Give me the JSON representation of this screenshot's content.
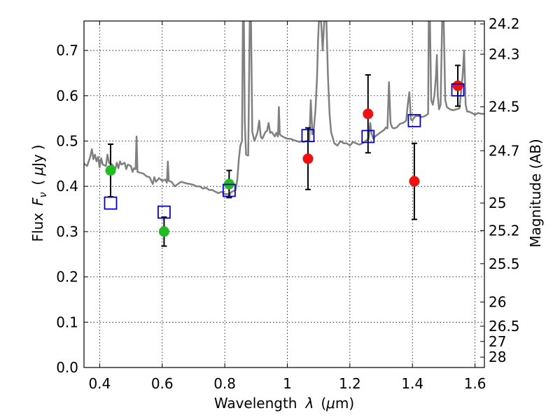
{
  "chart_data": {
    "type": "scatter",
    "xlabel_parts": [
      "Wavelength",
      "λ",
      "(",
      "μ",
      "m)"
    ],
    "ylabel_parts": [
      "Flux",
      "F",
      "ν",
      "(",
      "μ",
      "Jy",
      ")"
    ],
    "y2label": "Magnitude (AB)",
    "xlim": [
      0.35,
      1.63
    ],
    "ylim": [
      0.0,
      0.765
    ],
    "x_ticks": [
      {
        "value": 0.4,
        "label": "0.4"
      },
      {
        "value": 0.6,
        "label": "0.6"
      },
      {
        "value": 0.8,
        "label": "0.8"
      },
      {
        "value": 1.0,
        "label": "1"
      },
      {
        "value": 1.2,
        "label": "1.2"
      },
      {
        "value": 1.4,
        "label": "1.4"
      },
      {
        "value": 1.6,
        "label": "1.6"
      }
    ],
    "y_ticks": [
      {
        "value": 0.0,
        "label": "0.0"
      },
      {
        "value": 0.1,
        "label": "0.1"
      },
      {
        "value": 0.2,
        "label": "0.2"
      },
      {
        "value": 0.3,
        "label": "0.3"
      },
      {
        "value": 0.4,
        "label": "0.4"
      },
      {
        "value": 0.5,
        "label": "0.5"
      },
      {
        "value": 0.6,
        "label": "0.6"
      },
      {
        "value": 0.7,
        "label": "0.7"
      }
    ],
    "y2_ticks": [
      {
        "mag": 24.2,
        "label": "24.2"
      },
      {
        "mag": 24.3,
        "label": "24.3"
      },
      {
        "mag": 24.5,
        "label": "24.5"
      },
      {
        "mag": 24.7,
        "label": "24.7"
      },
      {
        "mag": 25.0,
        "label": "25"
      },
      {
        "mag": 25.2,
        "label": "25.2"
      },
      {
        "mag": 25.5,
        "label": "25.5"
      },
      {
        "mag": 26.0,
        "label": "26"
      },
      {
        "mag": 26.5,
        "label": "26.5"
      },
      {
        "mag": 27.0,
        "label": "27"
      },
      {
        "mag": 28.0,
        "label": "28"
      }
    ],
    "grid": true,
    "series": [
      {
        "marker": "circle",
        "color": "#22bb22",
        "points": [
          {
            "x": 0.435,
            "y": 0.435,
            "err": 0.058
          },
          {
            "x": 0.606,
            "y": 0.3,
            "err": 0.032
          },
          {
            "x": 0.814,
            "y": 0.405,
            "err": 0.03
          }
        ]
      },
      {
        "marker": "circle",
        "color": "#ee1111",
        "points": [
          {
            "x": 1.066,
            "y": 0.461,
            "err": 0.068
          },
          {
            "x": 1.258,
            "y": 0.56,
            "err": 0.086
          },
          {
            "x": 1.406,
            "y": 0.411,
            "err": 0.084
          },
          {
            "x": 1.545,
            "y": 0.622,
            "err": 0.045
          }
        ]
      },
      {
        "marker": "square",
        "color": "#0000cc",
        "points": [
          {
            "x": 0.435,
            "y": 0.363
          },
          {
            "x": 0.606,
            "y": 0.343
          },
          {
            "x": 0.814,
            "y": 0.391
          },
          {
            "x": 1.066,
            "y": 0.512
          },
          {
            "x": 1.258,
            "y": 0.51
          },
          {
            "x": 1.406,
            "y": 0.545
          },
          {
            "x": 1.545,
            "y": 0.613
          }
        ]
      }
    ],
    "model_spectrum": {
      "color": "#808080",
      "points": [
        [
          0.35,
          0.45
        ],
        [
          0.36,
          0.445
        ],
        [
          0.37,
          0.465
        ],
        [
          0.375,
          0.482
        ],
        [
          0.38,
          0.46
        ],
        [
          0.385,
          0.47
        ],
        [
          0.39,
          0.455
        ],
        [
          0.395,
          0.465
        ],
        [
          0.4,
          0.442
        ],
        [
          0.405,
          0.462
        ],
        [
          0.41,
          0.448
        ],
        [
          0.42,
          0.445
        ],
        [
          0.425,
          0.47
        ],
        [
          0.43,
          0.452
        ],
        [
          0.44,
          0.448
        ],
        [
          0.45,
          0.438
        ],
        [
          0.455,
          0.452
        ],
        [
          0.46,
          0.44
        ],
        [
          0.465,
          0.455
        ],
        [
          0.47,
          0.448
        ],
        [
          0.48,
          0.452
        ],
        [
          0.485,
          0.438
        ],
        [
          0.49,
          0.448
        ],
        [
          0.5,
          0.445
        ],
        [
          0.505,
          0.432
        ],
        [
          0.51,
          0.44
        ],
        [
          0.515,
          0.438
        ],
        [
          0.518,
          0.51
        ],
        [
          0.521,
          0.432
        ],
        [
          0.53,
          0.43
        ],
        [
          0.54,
          0.428
        ],
        [
          0.55,
          0.422
        ],
        [
          0.56,
          0.42
        ],
        [
          0.57,
          0.405
        ],
        [
          0.575,
          0.42
        ],
        [
          0.58,
          0.41
        ],
        [
          0.59,
          0.418
        ],
        [
          0.6,
          0.412
        ],
        [
          0.61,
          0.415
        ],
        [
          0.615,
          0.408
        ],
        [
          0.618,
          0.455
        ],
        [
          0.621,
          0.412
        ],
        [
          0.63,
          0.41
        ],
        [
          0.64,
          0.4
        ],
        [
          0.65,
          0.405
        ],
        [
          0.66,
          0.41
        ],
        [
          0.67,
          0.408
        ],
        [
          0.68,
          0.406
        ],
        [
          0.69,
          0.405
        ],
        [
          0.7,
          0.403
        ],
        [
          0.71,
          0.4
        ],
        [
          0.72,
          0.4
        ],
        [
          0.73,
          0.395
        ],
        [
          0.74,
          0.397
        ],
        [
          0.75,
          0.392
        ],
        [
          0.76,
          0.392
        ],
        [
          0.77,
          0.388
        ],
        [
          0.78,
          0.385
        ],
        [
          0.79,
          0.388
        ],
        [
          0.8,
          0.383
        ],
        [
          0.81,
          0.383
        ],
        [
          0.815,
          0.38
        ],
        [
          0.82,
          0.387
        ],
        [
          0.83,
          0.39
        ],
        [
          0.835,
          0.392
        ],
        [
          0.84,
          0.415
        ],
        [
          0.845,
          0.46
        ],
        [
          0.85,
          0.49
        ],
        [
          0.855,
          0.5
        ],
        [
          0.858,
          0.765
        ],
        [
          0.861,
          0.765
        ],
        [
          0.864,
          0.54
        ],
        [
          0.868,
          0.47
        ],
        [
          0.875,
          0.468
        ],
        [
          0.88,
          0.765
        ],
        [
          0.884,
          0.765
        ],
        [
          0.888,
          0.52
        ],
        [
          0.895,
          0.5
        ],
        [
          0.9,
          0.51
        ],
        [
          0.905,
          0.52
        ],
        [
          0.91,
          0.545
        ],
        [
          0.915,
          0.51
        ],
        [
          0.92,
          0.505
        ],
        [
          0.93,
          0.52
        ],
        [
          0.935,
          0.522
        ],
        [
          0.94,
          0.54
        ],
        [
          0.945,
          0.518
        ],
        [
          0.95,
          0.52
        ],
        [
          0.96,
          0.51
        ],
        [
          0.965,
          0.518
        ],
        [
          0.97,
          0.51
        ],
        [
          0.973,
          0.575
        ],
        [
          0.976,
          0.515
        ],
        [
          0.98,
          0.512
        ],
        [
          0.99,
          0.508
        ],
        [
          1.0,
          0.505
        ],
        [
          1.01,
          0.505
        ],
        [
          1.02,
          0.502
        ],
        [
          1.03,
          0.5
        ],
        [
          1.04,
          0.498
        ],
        [
          1.045,
          0.5
        ],
        [
          1.05,
          0.498
        ],
        [
          1.06,
          0.5
        ],
        [
          1.07,
          0.5
        ],
        [
          1.075,
          0.59
        ],
        [
          1.08,
          0.515
        ],
        [
          1.085,
          0.53
        ],
        [
          1.09,
          0.57
        ],
        [
          1.095,
          0.64
        ],
        [
          1.098,
          0.72
        ],
        [
          1.101,
          0.765
        ],
        [
          1.108,
          0.765
        ],
        [
          1.113,
          0.7
        ],
        [
          1.118,
          0.765
        ],
        [
          1.125,
          0.765
        ],
        [
          1.13,
          0.64
        ],
        [
          1.135,
          0.56
        ],
        [
          1.14,
          0.52
        ],
        [
          1.15,
          0.495
        ],
        [
          1.16,
          0.49
        ],
        [
          1.17,
          0.5
        ],
        [
          1.18,
          0.495
        ],
        [
          1.19,
          0.495
        ],
        [
          1.2,
          0.49
        ],
        [
          1.21,
          0.498
        ],
        [
          1.22,
          0.495
        ],
        [
          1.23,
          0.492
        ],
        [
          1.24,
          0.495
        ],
        [
          1.25,
          0.5
        ],
        [
          1.26,
          0.505
        ],
        [
          1.265,
          0.54
        ],
        [
          1.27,
          0.515
        ],
        [
          1.275,
          0.505
        ],
        [
          1.28,
          0.51
        ],
        [
          1.29,
          0.515
        ],
        [
          1.3,
          0.52
        ],
        [
          1.31,
          0.525
        ],
        [
          1.315,
          0.53
        ],
        [
          1.32,
          0.528
        ],
        [
          1.325,
          0.63
        ],
        [
          1.33,
          0.54
        ],
        [
          1.335,
          0.53
        ],
        [
          1.34,
          0.528
        ],
        [
          1.35,
          0.53
        ],
        [
          1.36,
          0.538
        ],
        [
          1.37,
          0.54
        ],
        [
          1.38,
          0.545
        ],
        [
          1.385,
          0.58
        ],
        [
          1.39,
          0.608
        ],
        [
          1.395,
          0.548
        ],
        [
          1.4,
          0.545
        ],
        [
          1.405,
          0.552
        ],
        [
          1.41,
          0.555
        ],
        [
          1.42,
          0.555
        ],
        [
          1.43,
          0.553
        ],
        [
          1.44,
          0.555
        ],
        [
          1.45,
          0.56
        ],
        [
          1.452,
          0.765
        ],
        [
          1.456,
          0.765
        ],
        [
          1.46,
          0.59
        ],
        [
          1.465,
          0.58
        ],
        [
          1.47,
          0.6
        ],
        [
          1.475,
          0.64
        ],
        [
          1.478,
          0.69
        ],
        [
          1.481,
          0.6
        ],
        [
          1.485,
          0.57
        ],
        [
          1.49,
          0.58
        ],
        [
          1.495,
          0.765
        ],
        [
          1.5,
          0.765
        ],
        [
          1.505,
          0.59
        ],
        [
          1.51,
          0.575
        ],
        [
          1.52,
          0.57
        ],
        [
          1.53,
          0.568
        ],
        [
          1.54,
          0.57
        ],
        [
          1.55,
          0.572
        ],
        [
          1.56,
          0.64
        ],
        [
          1.565,
          0.7
        ],
        [
          1.57,
          0.58
        ],
        [
          1.575,
          0.565
        ],
        [
          1.58,
          0.565
        ],
        [
          1.59,
          0.562
        ],
        [
          1.6,
          0.558
        ],
        [
          1.61,
          0.562
        ],
        [
          1.62,
          0.56
        ],
        [
          1.63,
          0.56
        ]
      ]
    }
  }
}
